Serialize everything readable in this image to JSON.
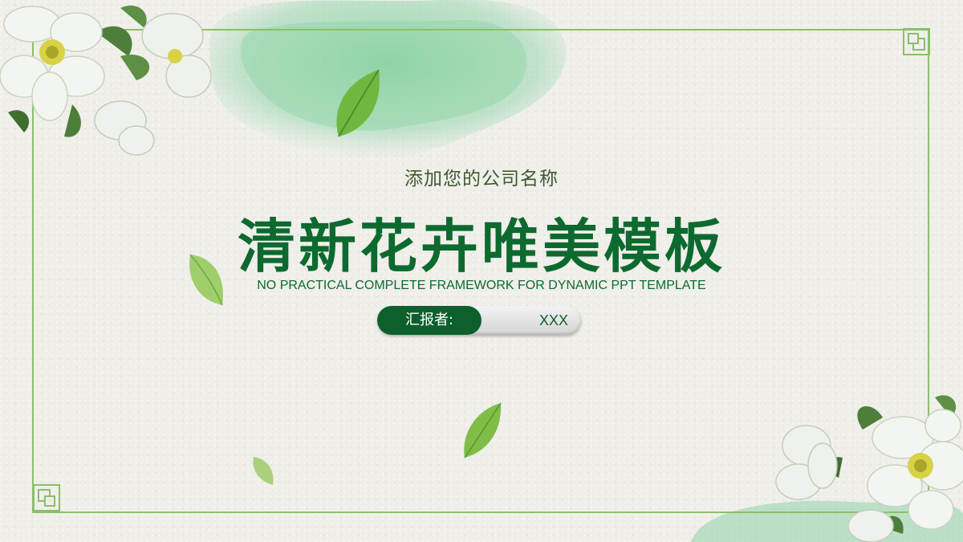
{
  "slide": {
    "company": "添加您的公司名称",
    "title": "清新花卉唯美模板",
    "subtitle": "NO PRACTICAL COMPLETE FRAMEWORK FOR DYNAMIC PPT TEMPLATE",
    "reporter_label": "汇报者:",
    "reporter_value": "XXX"
  },
  "colors": {
    "title_green": "#0c6a2f",
    "frame_green": "#8bbf6a",
    "pill_green": "#0d5f2c",
    "paper": "#efeee9"
  }
}
